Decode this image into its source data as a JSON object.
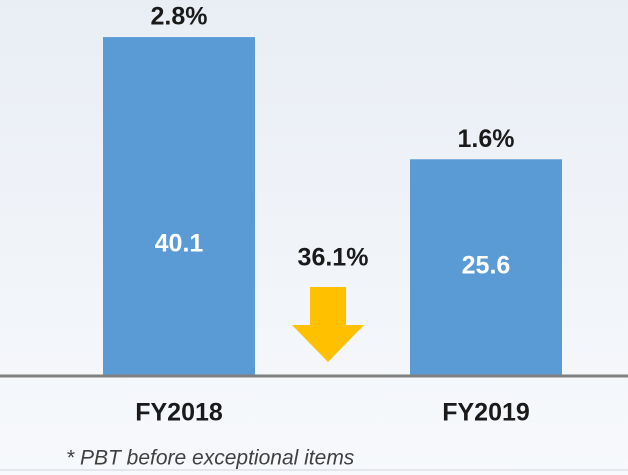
{
  "chart_data": {
    "type": "bar",
    "categories": [
      "FY2018",
      "FY2019"
    ],
    "values": [
      40.1,
      25.6
    ],
    "color": "#5b9bd5",
    "top_labels": [
      "2.8%",
      "1.6%"
    ],
    "change_annotation": "36.1%",
    "change_color": "#ffc000",
    "footnote": "* PBT before exceptional items",
    "ylim": [
      0,
      44.5
    ]
  }
}
